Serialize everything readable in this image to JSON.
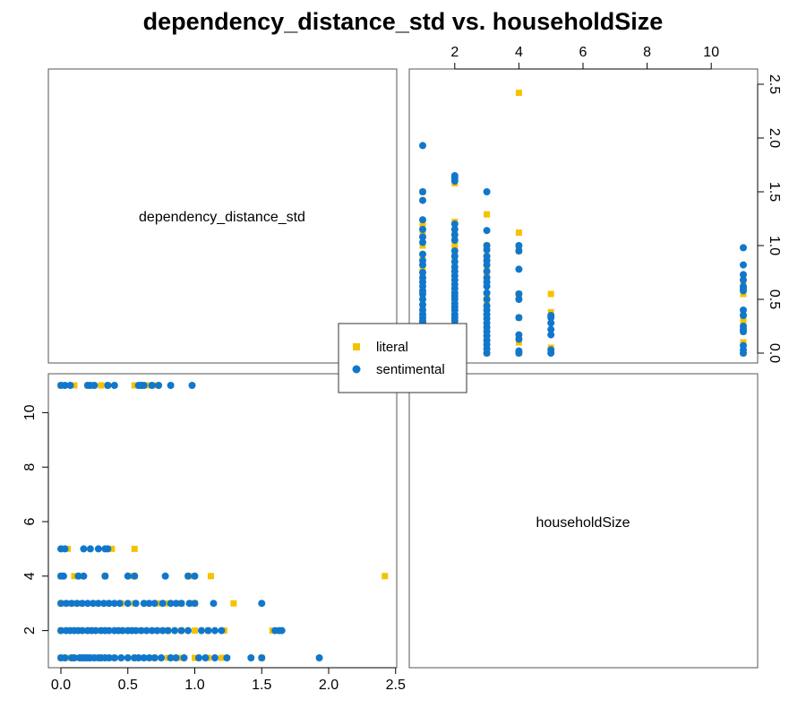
{
  "chart_data": {
    "type": "scatter",
    "title": "dependency_distance_std vs. householdSize",
    "variables": [
      "dependency_distance_std",
      "householdSize"
    ],
    "legend": {
      "placement": "center",
      "entries": [
        {
          "name": "literal",
          "marker": "square",
          "color": "#F5C200"
        },
        {
          "name": "sentimental",
          "marker": "circle",
          "color": "#1177CC"
        }
      ]
    },
    "axes": {
      "dependency_distance_std": {
        "range": [
          0,
          2.45
        ],
        "ticks": [
          0.0,
          0.5,
          1.0,
          1.5,
          2.0,
          2.5
        ],
        "tick_labels": [
          "0.0",
          "0.5",
          "1.0",
          "1.5",
          "2.0",
          "2.5"
        ]
      },
      "householdSize": {
        "range": [
          1,
          11
        ],
        "ticks_top": [
          2,
          4,
          6,
          8,
          10
        ],
        "tick_labels_top": [
          "2",
          "4",
          "6",
          "8",
          "10"
        ],
        "ticks_left": [
          2,
          4,
          6,
          8,
          10
        ],
        "tick_labels_left": [
          "2",
          "4",
          "6",
          "8",
          "10"
        ]
      }
    },
    "series": [
      {
        "name": "literal",
        "points": [
          [
            0.0,
            1
          ],
          [
            0.05,
            1
          ],
          [
            0.12,
            1
          ],
          [
            0.2,
            1
          ],
          [
            0.3,
            1
          ],
          [
            0.4,
            1
          ],
          [
            0.55,
            1
          ],
          [
            0.7,
            1
          ],
          [
            0.8,
            1
          ],
          [
            0.9,
            1
          ],
          [
            1.0,
            1
          ],
          [
            1.1,
            1
          ],
          [
            1.2,
            1
          ],
          [
            1.5,
            1
          ],
          [
            0.0,
            2
          ],
          [
            0.05,
            2
          ],
          [
            0.1,
            2
          ],
          [
            0.2,
            2
          ],
          [
            0.3,
            2
          ],
          [
            0.35,
            2
          ],
          [
            0.45,
            2
          ],
          [
            0.5,
            2
          ],
          [
            0.6,
            2
          ],
          [
            0.7,
            2
          ],
          [
            0.8,
            2
          ],
          [
            0.9,
            2
          ],
          [
            1.0,
            2
          ],
          [
            1.1,
            2
          ],
          [
            1.22,
            2
          ],
          [
            1.58,
            2
          ],
          [
            0.0,
            3
          ],
          [
            0.08,
            3
          ],
          [
            0.15,
            3
          ],
          [
            0.25,
            3
          ],
          [
            0.35,
            3
          ],
          [
            0.45,
            3
          ],
          [
            0.55,
            3
          ],
          [
            0.65,
            3
          ],
          [
            0.72,
            3
          ],
          [
            0.8,
            3
          ],
          [
            0.9,
            3
          ],
          [
            0.98,
            3
          ],
          [
            1.0,
            3
          ],
          [
            1.29,
            3
          ],
          [
            0.0,
            4
          ],
          [
            0.1,
            4
          ],
          [
            0.15,
            4
          ],
          [
            0.33,
            4
          ],
          [
            0.52,
            4
          ],
          [
            0.55,
            4
          ],
          [
            0.95,
            4
          ],
          [
            0.98,
            4
          ],
          [
            1.12,
            4
          ],
          [
            2.42,
            4
          ],
          [
            0.05,
            5
          ],
          [
            0.38,
            5
          ],
          [
            0.55,
            5
          ],
          [
            0.0,
            11
          ],
          [
            0.1,
            11
          ],
          [
            0.2,
            11
          ],
          [
            0.3,
            11
          ],
          [
            0.35,
            11
          ],
          [
            0.55,
            11
          ],
          [
            0.65,
            11
          ],
          [
            0.72,
            11
          ]
        ]
      },
      {
        "name": "sentimental",
        "points": [
          [
            0.0,
            1
          ],
          [
            0.03,
            1
          ],
          [
            0.08,
            1
          ],
          [
            0.1,
            1
          ],
          [
            0.14,
            1
          ],
          [
            0.16,
            1
          ],
          [
            0.18,
            1
          ],
          [
            0.2,
            1
          ],
          [
            0.22,
            1
          ],
          [
            0.25,
            1
          ],
          [
            0.28,
            1
          ],
          [
            0.3,
            1
          ],
          [
            0.33,
            1
          ],
          [
            0.36,
            1
          ],
          [
            0.4,
            1
          ],
          [
            0.45,
            1
          ],
          [
            0.5,
            1
          ],
          [
            0.55,
            1
          ],
          [
            0.58,
            1
          ],
          [
            0.62,
            1
          ],
          [
            0.66,
            1
          ],
          [
            0.7,
            1
          ],
          [
            0.75,
            1
          ],
          [
            0.82,
            1
          ],
          [
            0.86,
            1
          ],
          [
            0.92,
            1
          ],
          [
            1.03,
            1
          ],
          [
            1.08,
            1
          ],
          [
            1.15,
            1
          ],
          [
            1.24,
            1
          ],
          [
            1.42,
            1
          ],
          [
            1.5,
            1
          ],
          [
            1.93,
            1
          ],
          [
            0.0,
            2
          ],
          [
            0.04,
            2
          ],
          [
            0.07,
            2
          ],
          [
            0.1,
            2
          ],
          [
            0.13,
            2
          ],
          [
            0.16,
            2
          ],
          [
            0.2,
            2
          ],
          [
            0.23,
            2
          ],
          [
            0.26,
            2
          ],
          [
            0.3,
            2
          ],
          [
            0.33,
            2
          ],
          [
            0.36,
            2
          ],
          [
            0.4,
            2
          ],
          [
            0.43,
            2
          ],
          [
            0.46,
            2
          ],
          [
            0.5,
            2
          ],
          [
            0.53,
            2
          ],
          [
            0.56,
            2
          ],
          [
            0.6,
            2
          ],
          [
            0.64,
            2
          ],
          [
            0.68,
            2
          ],
          [
            0.72,
            2
          ],
          [
            0.76,
            2
          ],
          [
            0.8,
            2
          ],
          [
            0.85,
            2
          ],
          [
            0.9,
            2
          ],
          [
            0.95,
            2
          ],
          [
            1.05,
            2
          ],
          [
            1.1,
            2
          ],
          [
            1.15,
            2
          ],
          [
            1.2,
            2
          ],
          [
            1.6,
            2
          ],
          [
            1.63,
            2
          ],
          [
            1.65,
            2
          ],
          [
            0.0,
            3
          ],
          [
            0.04,
            3
          ],
          [
            0.08,
            3
          ],
          [
            0.12,
            3
          ],
          [
            0.16,
            3
          ],
          [
            0.2,
            3
          ],
          [
            0.24,
            3
          ],
          [
            0.28,
            3
          ],
          [
            0.32,
            3
          ],
          [
            0.36,
            3
          ],
          [
            0.4,
            3
          ],
          [
            0.44,
            3
          ],
          [
            0.5,
            3
          ],
          [
            0.56,
            3
          ],
          [
            0.62,
            3
          ],
          [
            0.66,
            3
          ],
          [
            0.7,
            3
          ],
          [
            0.76,
            3
          ],
          [
            0.82,
            3
          ],
          [
            0.86,
            3
          ],
          [
            0.9,
            3
          ],
          [
            0.96,
            3
          ],
          [
            1.0,
            3
          ],
          [
            1.14,
            3
          ],
          [
            1.5,
            3
          ],
          [
            0.0,
            4
          ],
          [
            0.02,
            4
          ],
          [
            0.13,
            4
          ],
          [
            0.17,
            4
          ],
          [
            0.33,
            4
          ],
          [
            0.5,
            4
          ],
          [
            0.55,
            4
          ],
          [
            0.78,
            4
          ],
          [
            0.95,
            4
          ],
          [
            1.0,
            4
          ],
          [
            0.0,
            5
          ],
          [
            0.03,
            5
          ],
          [
            0.17,
            5
          ],
          [
            0.22,
            5
          ],
          [
            0.28,
            5
          ],
          [
            0.33,
            5
          ],
          [
            0.35,
            5
          ],
          [
            0.0,
            11
          ],
          [
            0.03,
            11
          ],
          [
            0.07,
            11
          ],
          [
            0.2,
            11
          ],
          [
            0.22,
            11
          ],
          [
            0.25,
            11
          ],
          [
            0.35,
            11
          ],
          [
            0.4,
            11
          ],
          [
            0.58,
            11
          ],
          [
            0.6,
            11
          ],
          [
            0.62,
            11
          ],
          [
            0.68,
            11
          ],
          [
            0.73,
            11
          ],
          [
            0.82,
            11
          ],
          [
            0.98,
            11
          ]
        ]
      }
    ]
  }
}
